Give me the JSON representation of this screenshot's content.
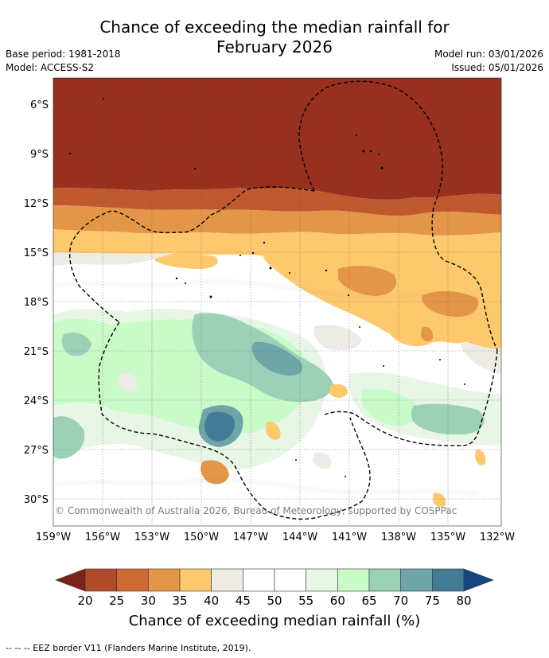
{
  "title_line1": "Chance of exceeding the median rainfall for",
  "title_line2": "February 2026",
  "base_period": "Base period: 1981-2018",
  "model": "Model: ACCESS-S2",
  "model_run": "Model run: 03/01/2026",
  "issued": "Issued: 05/01/2026",
  "copyright": "© Commonwealth of Australia 2026, Bureau of Meteorology, supported by COSPPac",
  "lat_labels": [
    "6°S",
    "9°S",
    "12°S",
    "15°S",
    "18°S",
    "21°S",
    "24°S",
    "27°S",
    "30°S"
  ],
  "lon_labels": [
    "159°W",
    "156°W",
    "153°W",
    "150°W",
    "147°W",
    "144°W",
    "141°W",
    "138°W",
    "135°W",
    "132°W"
  ],
  "colorbar": {
    "ticks": [
      "20",
      "25",
      "30",
      "35",
      "40",
      "45",
      "50",
      "55",
      "60",
      "65",
      "70",
      "75",
      "80"
    ],
    "colors": [
      "#7a2318",
      "#b14a2a",
      "#cc6a33",
      "#e39647",
      "#fec96c",
      "#eeebe5",
      "#ffffff",
      "#ffffff",
      "#e8f6e6",
      "#c8fbc8",
      "#9dd1b7",
      "#6ea5a7",
      "#437b97",
      "#16467f"
    ],
    "label": "Chance of exceeding median rainfall (%)"
  },
  "footer": "--  --  -- EEZ border V11 (Flanders Marine Institute, 2019)."
}
